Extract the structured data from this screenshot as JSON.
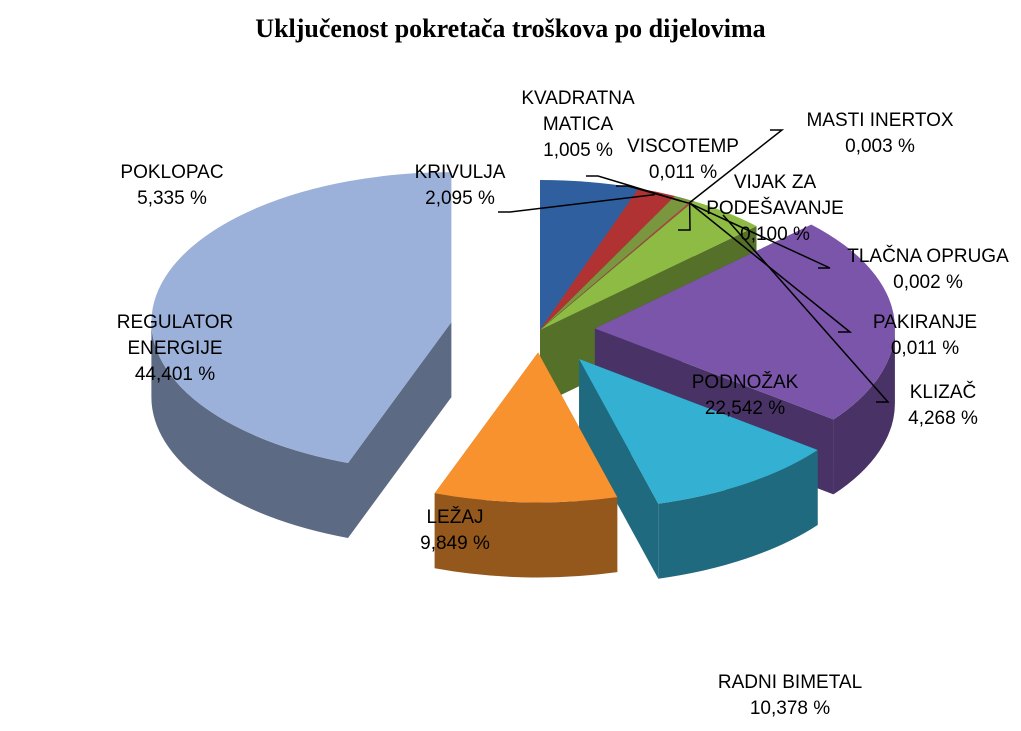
{
  "chart_data": {
    "type": "pie",
    "title": "Uključenost pokretača troškova po dijelovima",
    "categories": [
      "POKLOPAC",
      "KRIVULJA",
      "KVADRATNA MATICA",
      "VISCOTEMP",
      "MASTI INERTOX",
      "VIJAK ZA PODEŠAVANJE",
      "TLAČNA OPRUGA",
      "PAKIRANJE",
      "KLIZAČ",
      "PODNOŽAK",
      "RADNI BIMETAL",
      "LEŽAJ",
      "REGULATOR ENERGIJE"
    ],
    "values": [
      5.335,
      2.095,
      1.005,
      0.011,
      0.003,
      0.1,
      0.002,
      0.011,
      4.268,
      22.542,
      10.378,
      9.849,
      44.401
    ],
    "value_labels": [
      "5,335 %",
      "2,095 %",
      "1,005 %",
      "0,011 %",
      "0,003 %",
      "0,100 %",
      "0,002 %",
      "0,011 %",
      "4,268 %",
      "22,542 %",
      "10,378 %",
      "9,849 %",
      "44,401 %"
    ],
    "colors": [
      "#2f5f9f",
      "#b03232",
      "#7a963e",
      "#e07a30",
      "#5a8fc8",
      "#c04040",
      "#8ab040",
      "#7050a0",
      "#8dbb44",
      "#7a55aa",
      "#33b0d2",
      "#f7922f",
      "#9bb1da"
    ]
  }
}
